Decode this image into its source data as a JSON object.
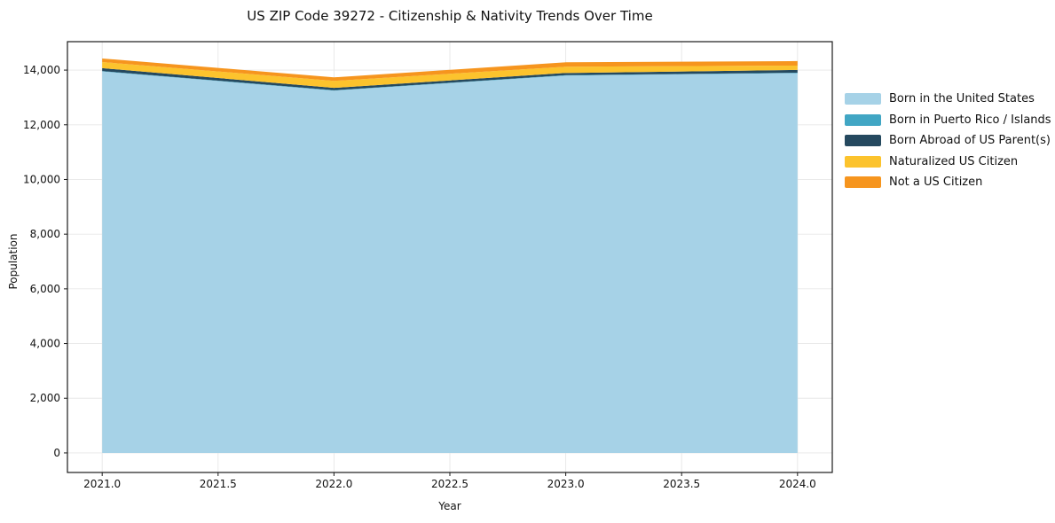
{
  "chart_data": {
    "type": "area",
    "stacked": true,
    "title": "US ZIP Code 39272 - Citizenship & Nativity Trends Over Time",
    "xlabel": "Year",
    "ylabel": "Population",
    "x": [
      2021,
      2022,
      2023,
      2024
    ],
    "series": [
      {
        "name": "Born in the United States",
        "color": "#a6d2e7",
        "values": [
          13950,
          13250,
          13800,
          13890
        ]
      },
      {
        "name": "Born in Puerto Rico / Islands",
        "color": "#41a6c4",
        "values": [
          15,
          15,
          15,
          15
        ]
      },
      {
        "name": "Born Abroad of US Parent(s)",
        "color": "#25495f",
        "values": [
          105,
          85,
          80,
          100
        ]
      },
      {
        "name": "Naturalized US Citizen",
        "color": "#fcc32d",
        "values": [
          225,
          255,
          230,
          160
        ]
      },
      {
        "name": "Not a US Citizen",
        "color": "#f6951e",
        "values": [
          130,
          130,
          160,
          165
        ]
      }
    ],
    "xlim": [
      2020.85,
      2024.15
    ],
    "ylim": [
      -715,
      15040
    ],
    "xticks": {
      "values": [
        2021.0,
        2021.5,
        2022.0,
        2022.5,
        2023.0,
        2023.5,
        2024.0
      ],
      "labels": [
        "2021.0",
        "2021.5",
        "2022.0",
        "2022.5",
        "2023.0",
        "2023.5",
        "2024.0"
      ]
    },
    "yticks": {
      "values": [
        0,
        2000,
        4000,
        6000,
        8000,
        10000,
        12000,
        14000
      ],
      "labels": [
        "0",
        "2,000",
        "4,000",
        "6,000",
        "8,000",
        "10,000",
        "12,000",
        "14,000"
      ]
    },
    "grid": true,
    "legend_position": "right-outside"
  },
  "colors": {
    "background": "#ffffff",
    "grid": "#e7e7e7",
    "spine": "#1a1a1a",
    "tick_text": "#111111"
  }
}
